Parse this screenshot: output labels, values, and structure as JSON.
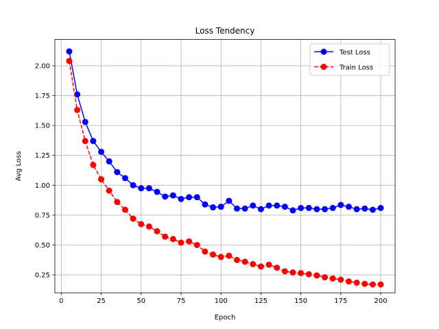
{
  "chart_data": {
    "type": "line",
    "title": "Loss Tendency",
    "xlabel": "Epoch",
    "ylabel": "Avg Loss",
    "xlim": [
      -4,
      209
    ],
    "ylim": [
      0.1,
      2.22
    ],
    "xticks": [
      0,
      25,
      50,
      75,
      100,
      125,
      150,
      175,
      200
    ],
    "xtick_labels": [
      "0",
      "25",
      "50",
      "75",
      "100",
      "125",
      "150",
      "175",
      "200"
    ],
    "yticks": [
      0.25,
      0.5,
      0.75,
      1.0,
      1.25,
      1.5,
      1.75,
      2.0
    ],
    "ytick_labels": [
      "0.25",
      "0.50",
      "0.75",
      "1.00",
      "1.25",
      "1.50",
      "1.75",
      "2.00"
    ],
    "grid": true,
    "legend_position": "top-right",
    "x": [
      5,
      10,
      15,
      20,
      25,
      30,
      35,
      40,
      45,
      50,
      55,
      60,
      65,
      70,
      75,
      80,
      85,
      90,
      95,
      100,
      105,
      110,
      115,
      120,
      125,
      130,
      135,
      140,
      145,
      150,
      155,
      160,
      165,
      170,
      175,
      180,
      185,
      190,
      195,
      200
    ],
    "series": [
      {
        "name": "Test Loss",
        "color": "#0000ff",
        "linestyle": "solid",
        "marker": "circle",
        "values": [
          2.12,
          1.76,
          1.53,
          1.37,
          1.28,
          1.2,
          1.11,
          1.06,
          1.0,
          0.975,
          0.975,
          0.945,
          0.905,
          0.915,
          0.885,
          0.9,
          0.9,
          0.84,
          0.815,
          0.82,
          0.87,
          0.805,
          0.805,
          0.83,
          0.8,
          0.83,
          0.83,
          0.82,
          0.79,
          0.81,
          0.81,
          0.8,
          0.8,
          0.81,
          0.835,
          0.82,
          0.8,
          0.805,
          0.795,
          0.81
        ]
      },
      {
        "name": "Train Loss",
        "color": "#ff0000",
        "linestyle": "dashed",
        "marker": "circle",
        "values": [
          2.04,
          1.63,
          1.37,
          1.17,
          1.05,
          0.955,
          0.86,
          0.795,
          0.72,
          0.675,
          0.655,
          0.615,
          0.57,
          0.55,
          0.52,
          0.53,
          0.5,
          0.445,
          0.42,
          0.4,
          0.41,
          0.375,
          0.36,
          0.34,
          0.32,
          0.335,
          0.31,
          0.28,
          0.27,
          0.265,
          0.255,
          0.245,
          0.23,
          0.22,
          0.21,
          0.195,
          0.185,
          0.175,
          0.17,
          0.17
        ]
      }
    ]
  }
}
